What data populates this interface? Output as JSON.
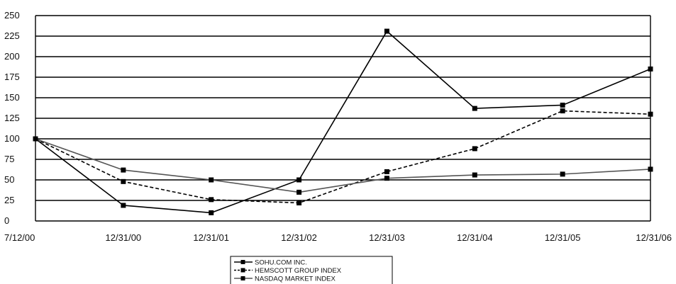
{
  "chart_data": {
    "type": "line",
    "title": "",
    "xlabel": "",
    "ylabel": "",
    "categories": [
      "7/12/00",
      "12/31/00",
      "12/31/01",
      "12/31/02",
      "12/31/03",
      "12/31/04",
      "12/31/05",
      "12/31/06"
    ],
    "y_ticks": [
      "0",
      "25",
      "50",
      "75",
      "100",
      "125",
      "150",
      "175",
      "200",
      "225",
      "250"
    ],
    "ylim": [
      0,
      250
    ],
    "grid": true,
    "legend_position": "bottom-center",
    "series": [
      {
        "name": "SOHU.COM INC.",
        "values": [
          100,
          19,
          10,
          50,
          231,
          137,
          141,
          185
        ],
        "color": "#000000",
        "dash": "solid"
      },
      {
        "name": "HEMSCOTT GROUP INDEX",
        "values": [
          100,
          48,
          26,
          22,
          60,
          88,
          134,
          130
        ],
        "color": "#000000",
        "dash": "dashed"
      },
      {
        "name": "NASDAQ MARKET INDEX",
        "values": [
          100,
          62,
          50,
          35,
          52,
          56,
          57,
          63
        ],
        "color": "#555555",
        "dash": "solid"
      }
    ]
  }
}
